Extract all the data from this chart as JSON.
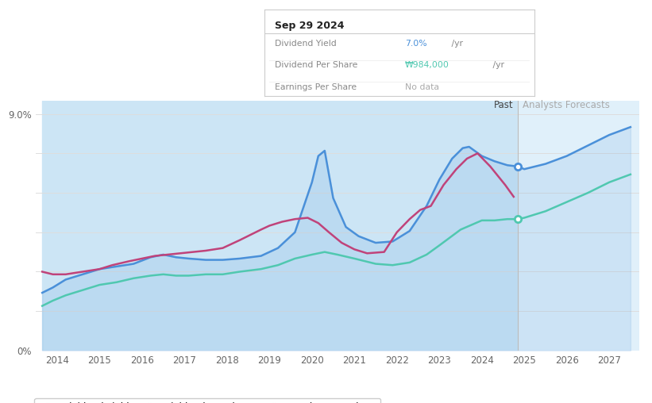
{
  "bg_color": "#ffffff",
  "chart_bg_color": "#ffffff",
  "past_shade_color": "#cce5f5",
  "forecast_shade_color": "#e0f0fa",
  "ylim": [
    0,
    9.5
  ],
  "y_max_label": 9.0,
  "xlim_start": 2013.5,
  "xlim_end": 2027.7,
  "past_region_start": 2013.65,
  "transition_x": 2024.85,
  "xticks": [
    2014,
    2015,
    2016,
    2017,
    2018,
    2019,
    2020,
    2021,
    2022,
    2023,
    2024,
    2025,
    2026,
    2027
  ],
  "gridlines_y": [
    0,
    1.5,
    3.0,
    4.5,
    6.0,
    7.5,
    9.0
  ],
  "tooltip": {
    "date": "Sep 29 2024",
    "rows": [
      {
        "label": "Dividend Yield",
        "value": "7.0%",
        "unit": " /yr",
        "color": "#4a90d9"
      },
      {
        "label": "Dividend Per Share",
        "value": "₩984,000",
        "unit": " /yr",
        "color": "#50c8b0"
      },
      {
        "label": "Earnings Per Share",
        "value": "No data",
        "unit": "",
        "color": "#aaaaaa"
      }
    ]
  },
  "dividend_yield": {
    "color": "#4a90d9",
    "x": [
      2013.65,
      2013.9,
      2014.2,
      2014.6,
      2015.0,
      2015.4,
      2015.8,
      2016.2,
      2016.5,
      2016.8,
      2017.1,
      2017.5,
      2017.9,
      2018.3,
      2018.8,
      2019.2,
      2019.6,
      2020.0,
      2020.15,
      2020.3,
      2020.5,
      2020.8,
      2021.1,
      2021.5,
      2021.9,
      2022.3,
      2022.7,
      2023.0,
      2023.3,
      2023.55,
      2023.7,
      2024.0,
      2024.3,
      2024.6,
      2024.85,
      2025.0,
      2025.5,
      2026.0,
      2026.5,
      2027.0,
      2027.5
    ],
    "y": [
      2.2,
      2.4,
      2.7,
      2.9,
      3.1,
      3.2,
      3.3,
      3.55,
      3.65,
      3.55,
      3.5,
      3.45,
      3.45,
      3.5,
      3.6,
      3.9,
      4.5,
      6.4,
      7.4,
      7.6,
      5.8,
      4.7,
      4.35,
      4.1,
      4.15,
      4.55,
      5.5,
      6.5,
      7.3,
      7.7,
      7.75,
      7.4,
      7.2,
      7.05,
      7.0,
      6.9,
      7.1,
      7.4,
      7.8,
      8.2,
      8.5
    ]
  },
  "dividend_per_share": {
    "color": "#50c8b0",
    "x": [
      2013.65,
      2013.9,
      2014.2,
      2014.6,
      2015.0,
      2015.4,
      2015.8,
      2016.2,
      2016.5,
      2016.8,
      2017.1,
      2017.5,
      2017.9,
      2018.3,
      2018.8,
      2019.2,
      2019.6,
      2020.0,
      2020.3,
      2020.6,
      2021.0,
      2021.5,
      2021.9,
      2022.3,
      2022.7,
      2023.0,
      2023.5,
      2024.0,
      2024.3,
      2024.6,
      2024.85,
      2025.0,
      2025.5,
      2026.0,
      2026.5,
      2027.0,
      2027.5
    ],
    "y": [
      1.7,
      1.9,
      2.1,
      2.3,
      2.5,
      2.6,
      2.75,
      2.85,
      2.9,
      2.85,
      2.85,
      2.9,
      2.9,
      3.0,
      3.1,
      3.25,
      3.5,
      3.65,
      3.75,
      3.65,
      3.5,
      3.3,
      3.25,
      3.35,
      3.65,
      4.0,
      4.6,
      4.95,
      4.95,
      5.0,
      5.0,
      5.05,
      5.3,
      5.65,
      6.0,
      6.4,
      6.7
    ]
  },
  "earnings_per_share": {
    "color": "#c0437a",
    "x": [
      2013.65,
      2013.9,
      2014.2,
      2014.6,
      2015.0,
      2015.3,
      2015.7,
      2016.0,
      2016.3,
      2016.6,
      2016.9,
      2017.2,
      2017.5,
      2017.9,
      2018.3,
      2018.8,
      2019.0,
      2019.3,
      2019.6,
      2019.9,
      2020.15,
      2020.4,
      2020.7,
      2021.0,
      2021.3,
      2021.7,
      2022.0,
      2022.3,
      2022.55,
      2022.8,
      2023.1,
      2023.4,
      2023.65,
      2023.9,
      2024.2,
      2024.55,
      2024.75
    ],
    "y": [
      3.0,
      2.9,
      2.9,
      3.0,
      3.1,
      3.25,
      3.4,
      3.5,
      3.6,
      3.65,
      3.7,
      3.75,
      3.8,
      3.9,
      4.2,
      4.6,
      4.75,
      4.9,
      5.0,
      5.05,
      4.85,
      4.5,
      4.1,
      3.85,
      3.7,
      3.75,
      4.5,
      5.0,
      5.35,
      5.5,
      6.3,
      6.9,
      7.3,
      7.5,
      7.0,
      6.3,
      5.85
    ]
  },
  "legend": [
    {
      "label": "Dividend Yield",
      "color": "#4a90d9"
    },
    {
      "label": "Dividend Per Share",
      "color": "#50c8b0"
    },
    {
      "label": "Earnings Per Share",
      "color": "#c0437a"
    }
  ]
}
